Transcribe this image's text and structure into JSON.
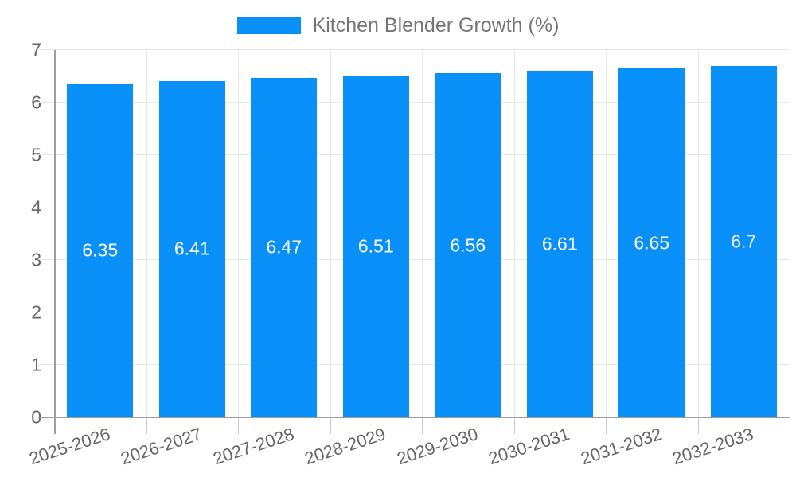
{
  "legend": {
    "label": "Kitchen Blender Growth (%)"
  },
  "chart_data": {
    "type": "bar",
    "title": "Kitchen Blender Growth (%)",
    "categories": [
      "2025-2026",
      "2026-2027",
      "2027-2028",
      "2028-2029",
      "2029-2030",
      "2030-2031",
      "2031-2032",
      "2032-2033"
    ],
    "values": [
      6.35,
      6.41,
      6.47,
      6.51,
      6.56,
      6.61,
      6.65,
      6.7
    ],
    "value_labels": [
      "6.35",
      "6.41",
      "6.47",
      "6.51",
      "6.56",
      "6.61",
      "6.65",
      "6.7"
    ],
    "xlabel": "",
    "ylabel": "",
    "ylim": [
      0,
      7
    ],
    "yticks": [
      0,
      1,
      2,
      3,
      4,
      5,
      6,
      7
    ],
    "grid": true,
    "legend_position": "top",
    "colors": {
      "bar": "#0990f8",
      "value_label": "#ffffff",
      "axis_text": "#666666",
      "legend_text": "#757575",
      "gridline": "#e6e6e6",
      "tick": "#cccccc",
      "axis_line": "#9e9e9e",
      "background": "#ffffff"
    }
  }
}
